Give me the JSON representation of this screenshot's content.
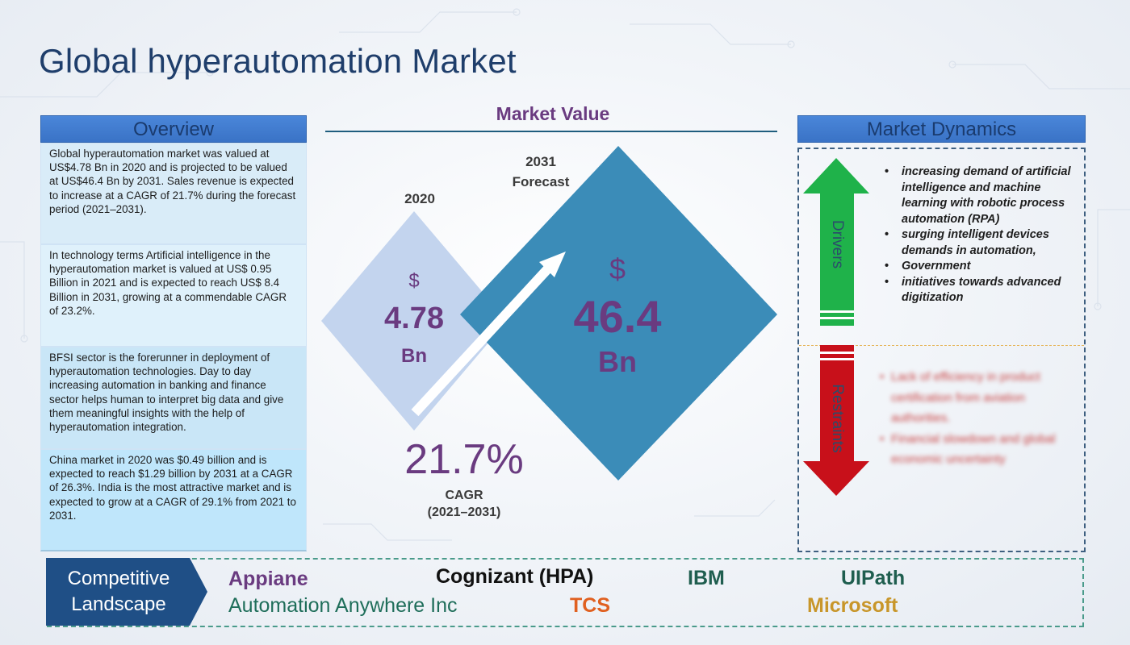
{
  "title": "Global hyperautomation Market",
  "overview": {
    "header": "Overview",
    "paragraphs": [
      "Global hyperautomation market was valued at US$4.78 Bn in 2020 and is projected to be valued at US$46.4 Bn by 2031. Sales revenue is expected to increase at a CAGR of 21.7% during the forecast period (2021–2031).",
      "In technology terms Artificial intelligence in the hyperautomation market is valued at US$ 0.95 Billion in 2021 and is expected to reach US$ 8.4 Billion in 2031, growing at a commendable CAGR of 23.2%.",
      "BFSI sector is the forerunner in deployment of hyperautomation technologies. Day to day increasing automation in banking and finance sector helps human to interpret big data and give them meaningful insights with the help of hyperautomation integration.",
      "China market in 2020 was $0.49 billion and is expected to reach $1.29 billion by 2031 at a CAGR of 26.3%. India is the most attractive market and is expected to grow at a CAGR of 29.1% from 2021 to 2031."
    ]
  },
  "market_value": {
    "title": "Market Value",
    "y2020": {
      "label": "2020",
      "currency": "$",
      "value": "4.78",
      "unit": "Bn"
    },
    "y2031": {
      "label_line1": "2031",
      "label_line2": "Forecast",
      "currency": "$",
      "value": "46.4",
      "unit": "Bn"
    },
    "cagr": {
      "value": "21.7%",
      "label_line1": "CAGR",
      "label_line2": "(2021–2031)"
    }
  },
  "market_dynamics": {
    "header": "Market Dynamics",
    "drivers_label": "Drivers",
    "restraints_label": "Restraints",
    "drivers": [
      "increasing demand of artificial intelligence and machine learning with robotic process automation (RPA)",
      "surging intelligent devices demands in automation,",
      "Government",
      "initiatives towards advanced digitization"
    ],
    "restraints": [
      "Lack of efficiency in product certification from aviation authorities.",
      "Financial slowdown and global economic uncertainty"
    ]
  },
  "competitive_landscape": {
    "label_line1": "Competitive",
    "label_line2": "Landscape",
    "companies": [
      {
        "name": "Appiane",
        "color": "#6a3b80"
      },
      {
        "name": "Cognizant (HPA)",
        "color": "#111111"
      },
      {
        "name": "IBM",
        "color": "#1f5e4f"
      },
      {
        "name": "UIPath",
        "color": "#1f5e4f"
      },
      {
        "name": "Automation Anywhere Inc",
        "color": "#1f6e5a"
      },
      {
        "name": "TCS",
        "color": "#e06020"
      },
      {
        "name": "Microsoft",
        "color": "#c8962a"
      }
    ]
  },
  "colors": {
    "title": "#1f3e6b",
    "accent_purple": "#6a3b80",
    "header_blue": "#3a73c6",
    "diamond_2020": "#c3d4ee",
    "diamond_2031": "#3b8cb8",
    "drivers_arrow": "#1fb24a",
    "restraints_arrow": "#c8101a"
  }
}
